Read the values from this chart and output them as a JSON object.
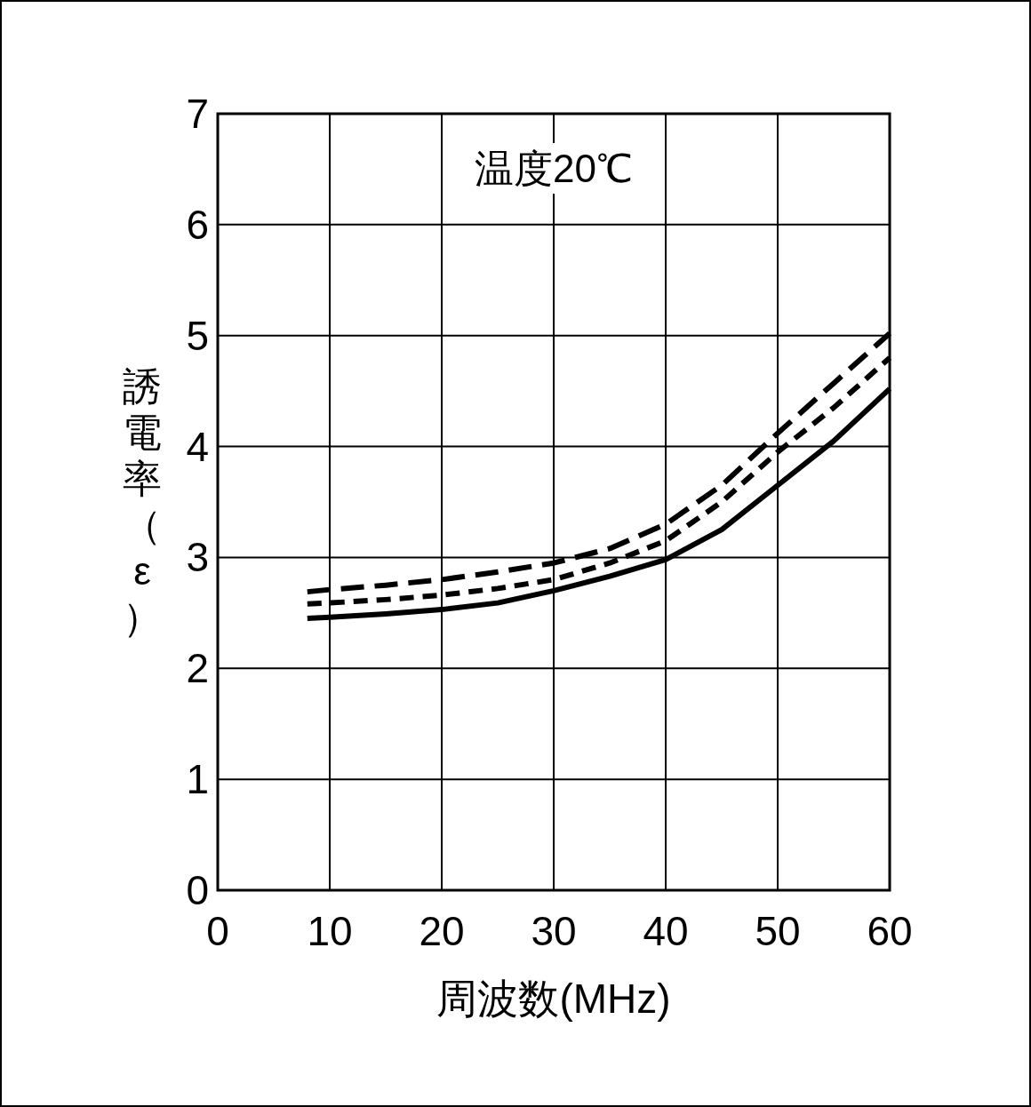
{
  "chart_data": {
    "type": "line",
    "title": "温度20℃",
    "xlabel": "周波数(MHz)",
    "ylabel": "誘電率（ε）",
    "xlim": [
      0,
      60
    ],
    "ylim": [
      0,
      7
    ],
    "xticks": [
      0,
      10,
      20,
      30,
      40,
      50,
      60
    ],
    "yticks": [
      0,
      1,
      2,
      3,
      4,
      5,
      6,
      7
    ],
    "grid": true,
    "marker": "none",
    "series": [
      {
        "color": "#000000",
        "line_style": "dashed",
        "x": [
          8,
          10,
          15,
          20,
          25,
          30,
          35,
          40,
          45,
          50,
          55,
          60
        ],
        "values": [
          2.69,
          2.71,
          2.75,
          2.8,
          2.87,
          2.95,
          3.08,
          3.3,
          3.65,
          4.12,
          4.57,
          5.02
        ]
      },
      {
        "color": "#000000",
        "line_style": "dotted",
        "x": [
          8,
          10,
          15,
          20,
          25,
          30,
          35,
          40,
          45,
          50,
          55,
          60
        ],
        "values": [
          2.58,
          2.59,
          2.62,
          2.66,
          2.72,
          2.8,
          2.95,
          3.15,
          3.5,
          3.95,
          4.35,
          4.8
        ]
      },
      {
        "color": "#000000",
        "line_style": "solid",
        "x": [
          8,
          10,
          15,
          20,
          25,
          30,
          35,
          40,
          45,
          50,
          55,
          60
        ],
        "values": [
          2.45,
          2.46,
          2.49,
          2.53,
          2.59,
          2.7,
          2.83,
          2.98,
          3.25,
          3.65,
          4.05,
          4.52
        ]
      }
    ]
  }
}
